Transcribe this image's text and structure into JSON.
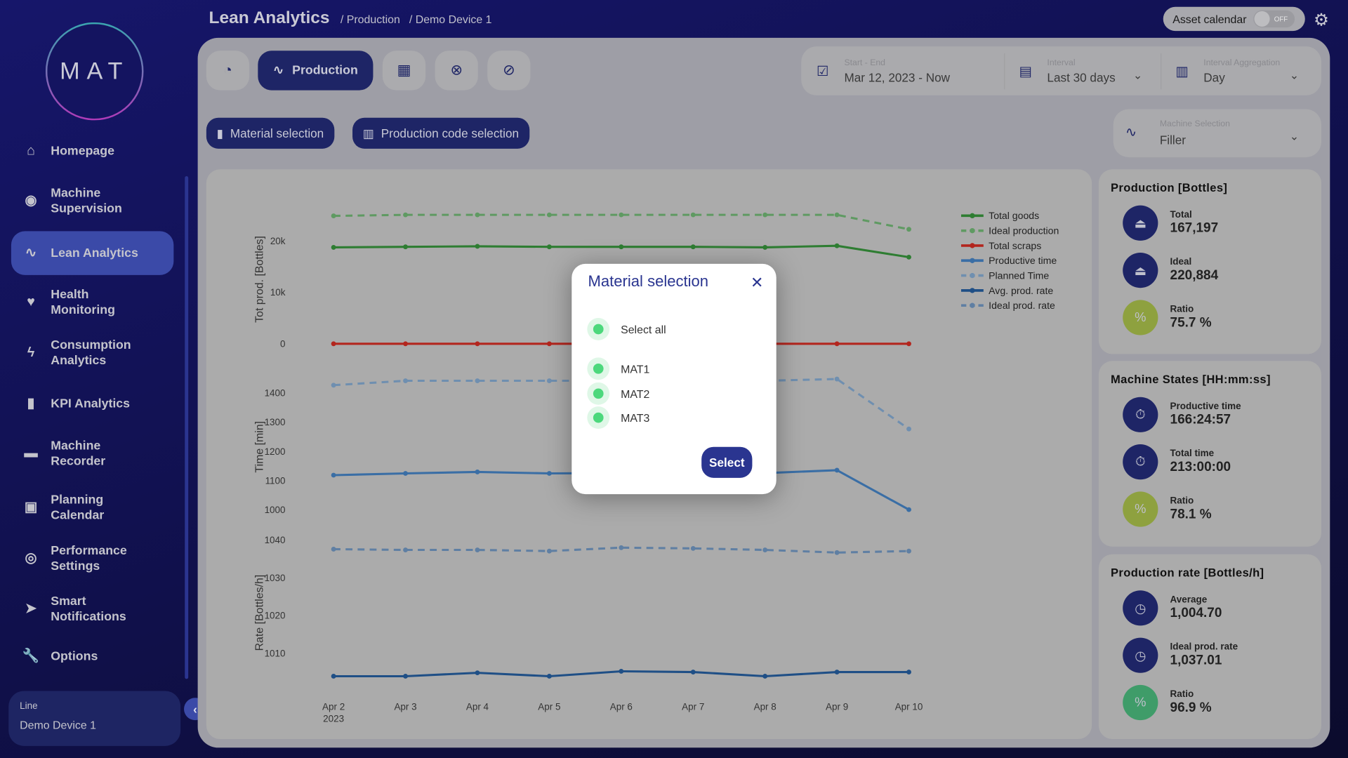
{
  "logo": {
    "text": "MAT"
  },
  "sidebar": {
    "items": [
      {
        "label": "Homepage",
        "icon": "home-icon",
        "glyph": "⌂"
      },
      {
        "label": "Machine Supervision",
        "icon": "eye-icon",
        "glyph": "◉"
      },
      {
        "label": "Lean Analytics",
        "icon": "trend-icon",
        "glyph": "∿",
        "active": true
      },
      {
        "label": "Health Monitoring",
        "icon": "heart-icon",
        "glyph": "♥"
      },
      {
        "label": "Consumption Analytics",
        "icon": "bolt-icon",
        "glyph": "ϟ"
      },
      {
        "label": "KPI Analytics",
        "icon": "bar-chart-icon",
        "glyph": "▮"
      },
      {
        "label": "Machine Recorder",
        "icon": "recorder-icon",
        "glyph": "▬"
      },
      {
        "label": "Planning Calendar",
        "icon": "calendar-icon",
        "glyph": "▣"
      },
      {
        "label": "Performance Settings",
        "icon": "stopwatch-icon",
        "glyph": "◎"
      },
      {
        "label": "Smart Notifications",
        "icon": "send-icon",
        "glyph": "➤"
      },
      {
        "label": "Options",
        "icon": "wrench-icon",
        "glyph": "🔧"
      }
    ],
    "line_label": "Line",
    "line_value": "Demo Device 1"
  },
  "header": {
    "title": "Lean Analytics",
    "breadcrumbs": [
      "/ Production",
      "/ Demo Device 1"
    ],
    "asset_calendar": "Asset calendar",
    "toggle": "OFF"
  },
  "tabs": {
    "production": "Production"
  },
  "filters": {
    "start_end_label": "Start - End",
    "start_end_value": "Mar 12, 2023 - Now",
    "interval_label": "Interval",
    "interval_value": "Last 30 days",
    "aggregation_label": "Interval Aggregation",
    "aggregation_value": "Day",
    "machine_label": "Machine Selection",
    "machine_value": "Filler"
  },
  "buttons": {
    "material": "Material selection",
    "production_code": "Production code selection"
  },
  "cards": [
    {
      "title": "Production [Bottles]",
      "items": [
        {
          "label": "Total",
          "value": "167,197",
          "color": "#1e2566"
        },
        {
          "label": "Ideal",
          "value": "220,884",
          "color": "#1e2566"
        },
        {
          "label": "Ratio",
          "value": "75.7 %",
          "color": "#8ea13f"
        }
      ]
    },
    {
      "title": "Machine States [HH:mm:ss]",
      "items": [
        {
          "label": "Productive time",
          "value": "166:24:57",
          "color": "#1e2566"
        },
        {
          "label": "Total time",
          "value": "213:00:00",
          "color": "#1e2566"
        },
        {
          "label": "Ratio",
          "value": "78.1 %",
          "color": "#8ea13f"
        }
      ]
    },
    {
      "title": "Production rate [Bottles/h]",
      "items": [
        {
          "label": "Average",
          "value": "1,004.70",
          "color": "#1e2566"
        },
        {
          "label": "Ideal prod. rate",
          "value": "1,037.01",
          "color": "#1e2566"
        },
        {
          "label": "Ratio",
          "value": "96.9 %",
          "color": "#3f9c69"
        }
      ]
    }
  ],
  "modal": {
    "title": "Material selection",
    "select_all": "Select all",
    "options": [
      "MAT1",
      "MAT2",
      "MAT3"
    ],
    "select_button": "Select"
  },
  "chart_data": {
    "type": "line",
    "x": [
      "Apr 2",
      "Apr 3",
      "Apr 4",
      "Apr 5",
      "Apr 6",
      "Apr 7",
      "Apr 8",
      "Apr 9",
      "Apr 10"
    ],
    "x_sublabel": "2023",
    "legend_position": "top-right",
    "panels": [
      {
        "ylabel": "Tot prod. [Bottles]",
        "ticks": [
          0,
          10000,
          20000
        ],
        "tick_labels": [
          "0",
          "10k",
          "20k"
        ],
        "series": [
          {
            "name": "Total goods",
            "color": "#2e7d32",
            "dashed": false,
            "values": [
              18700,
              18800,
              18900,
              18800,
              18800,
              18800,
              18700,
              19000,
              16800
            ]
          },
          {
            "name": "Ideal production",
            "color": "#5f9a62",
            "dashed": true,
            "values": [
              24800,
              25000,
              25000,
              25000,
              25000,
              25000,
              25000,
              25000,
              22200
            ]
          },
          {
            "name": "Total scraps",
            "color": "#b3261e",
            "dashed": false,
            "values": [
              0,
              0,
              0,
              0,
              0,
              0,
              0,
              0,
              0
            ]
          }
        ]
      },
      {
        "ylabel": "Time [min]",
        "ticks": [
          1000,
          1100,
          1200,
          1300,
          1400
        ],
        "tick_labels": [
          "1000",
          "1100",
          "1200",
          "1300",
          "1400"
        ],
        "series": [
          {
            "name": "Productive time",
            "color": "#3a6ea5",
            "dashed": false,
            "values": [
              1118,
              1124,
              1129,
              1124,
              1125,
              1125,
              1125,
              1135,
              1000
            ]
          },
          {
            "name": "Planned Time",
            "color": "#6f8fb0",
            "dashed": true,
            "values": [
              1426,
              1441,
              1441,
              1441,
              1441,
              1441,
              1441,
              1447,
              1276
            ]
          }
        ]
      },
      {
        "ylabel": "Rate [Bottles/h]",
        "ticks": [
          1010,
          1020,
          1030,
          1040
        ],
        "tick_labels": [
          "1010",
          "1020",
          "1030",
          "1040"
        ],
        "series": [
          {
            "name": "Avg. prod. rate",
            "color": "#1f4f86",
            "dashed": false,
            "values": [
              1003.9,
              1003.9,
              1004.8,
              1003.9,
              1005.2,
              1005.0,
              1003.9,
              1005.0,
              1005.0
            ]
          },
          {
            "name": "Ideal prod. rate",
            "color": "#5f7fa3",
            "dashed": true,
            "values": [
              1037.5,
              1037.3,
              1037.3,
              1037.0,
              1037.9,
              1037.7,
              1037.3,
              1036.6,
              1037.0
            ]
          }
        ]
      }
    ]
  }
}
